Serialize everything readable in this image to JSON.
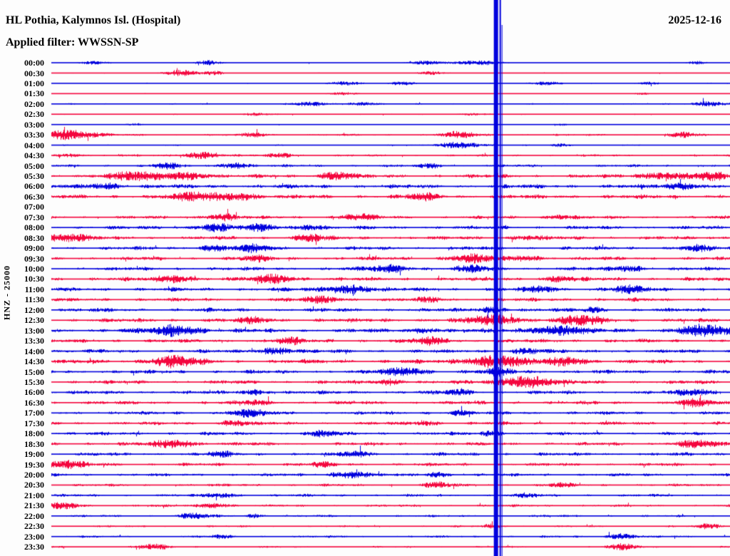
{
  "header": {
    "title": "HL Pothia, Kalymnos Isl. (Hospital)",
    "filter_label": "Applied filter: WWSSN-SP",
    "date": "2025-12-16"
  },
  "chart_data": {
    "type": "line",
    "subtype": "helicorder-seismogram",
    "title": "HL Pothia, Kalymnos Isl. (Hospital)",
    "filter_label": "Applied filter: WWSSN-SP",
    "date": "2025-12-16",
    "channel_scale_label": "HNZ - 25000",
    "minutes_per_row": 30,
    "rows_count": 48,
    "legend": "alternating trace colors per 30-minute row; amp = relative background noise half-amplitude (px), bursts = [position fraction of row, gaussian width px, extra amplitude px]; row 07:00 is a data gap",
    "colors": {
      "blue": "#0000dd",
      "red": "#f4063e",
      "label": "#000000",
      "background": "#fdfdfd"
    },
    "event_line": {
      "x_frac": 0.652,
      "color": "#0000dd",
      "full_height": true
    },
    "rows": [
      {
        "time": "00:00",
        "color": "blue",
        "amp": 0.8,
        "bursts": [
          [
            0.06,
            12,
            2.5
          ],
          [
            0.23,
            12,
            3
          ],
          [
            0.55,
            18,
            2.5
          ],
          [
            0.63,
            24,
            3
          ],
          [
            0.95,
            9,
            2
          ]
        ]
      },
      {
        "time": "00:30",
        "color": "red",
        "amp": 0.9,
        "bursts": [
          [
            0.19,
            18,
            4
          ],
          [
            0.24,
            9,
            2.5
          ],
          [
            0.56,
            12,
            2
          ]
        ]
      },
      {
        "time": "01:00",
        "color": "blue",
        "amp": 0.9,
        "bursts": [
          [
            0.43,
            15,
            2.5
          ],
          [
            0.52,
            12,
            2.5
          ],
          [
            0.73,
            15,
            2.5
          ],
          [
            0.88,
            12,
            2
          ]
        ]
      },
      {
        "time": "01:30",
        "color": "red",
        "amp": 0.55,
        "bursts": [
          [
            0.43,
            15,
            2
          ],
          [
            0.87,
            9,
            1.5
          ]
        ]
      },
      {
        "time": "02:00",
        "color": "blue",
        "amp": 1.1,
        "bursts": [
          [
            0.38,
            18,
            2.5
          ],
          [
            0.46,
            15,
            2.5
          ],
          [
            0.97,
            18,
            3.5
          ]
        ]
      },
      {
        "time": "02:30",
        "color": "red",
        "amp": 1.0,
        "bursts": [
          [
            0.3,
            12,
            1.8
          ],
          [
            0.62,
            12,
            1.8
          ]
        ]
      },
      {
        "time": "03:00",
        "color": "blue",
        "amp": 0.6,
        "bursts": [
          [
            0.12,
            9,
            1.5
          ],
          [
            0.75,
            9,
            1.5
          ]
        ]
      },
      {
        "time": "03:30",
        "color": "red",
        "amp": 1.6,
        "bursts": [
          [
            0.02,
            30,
            7
          ],
          [
            0.3,
            12,
            3
          ],
          [
            0.6,
            18,
            4
          ],
          [
            0.93,
            12,
            3.5
          ]
        ]
      },
      {
        "time": "04:00",
        "color": "blue",
        "amp": 1.1,
        "bursts": [
          [
            0.6,
            21,
            4.5
          ],
          [
            0.75,
            12,
            2
          ]
        ]
      },
      {
        "time": "04:30",
        "color": "red",
        "amp": 1.7,
        "bursts": [
          [
            0.03,
            12,
            2.5
          ],
          [
            0.22,
            18,
            4.5
          ],
          [
            0.34,
            12,
            3
          ]
        ]
      },
      {
        "time": "05:00",
        "color": "blue",
        "amp": 2.0,
        "bursts": [
          [
            0.17,
            12,
            4
          ],
          [
            0.27,
            15,
            4
          ],
          [
            0.56,
            12,
            3
          ]
        ]
      },
      {
        "time": "05:30",
        "color": "red",
        "amp": 2.8,
        "bursts": [
          [
            0.12,
            30,
            5
          ],
          [
            0.2,
            24,
            4.5
          ],
          [
            0.42,
            18,
            5
          ],
          [
            0.9,
            24,
            4.5
          ],
          [
            0.97,
            18,
            5
          ]
        ]
      },
      {
        "time": "06:00",
        "color": "blue",
        "amp": 3.2,
        "bursts": [
          [
            0.08,
            18,
            3.5
          ],
          [
            0.93,
            18,
            4
          ]
        ]
      },
      {
        "time": "06:30",
        "color": "red",
        "amp": 3.2,
        "bursts": [
          [
            0.22,
            30,
            5
          ],
          [
            0.28,
            18,
            4
          ],
          [
            0.55,
            15,
            4
          ]
        ]
      },
      {
        "time": "07:00",
        "color": "blue",
        "amp": 0,
        "bursts": [],
        "gap": true
      },
      {
        "time": "07:30",
        "color": "red",
        "amp": 2.4,
        "bursts": [
          [
            0.25,
            18,
            4
          ],
          [
            0.45,
            18,
            4
          ],
          [
            0.75,
            15,
            3
          ]
        ]
      },
      {
        "time": "08:00",
        "color": "blue",
        "amp": 2.8,
        "bursts": [
          [
            0.24,
            18,
            4.5
          ],
          [
            0.31,
            15,
            4
          ],
          [
            0.38,
            15,
            3.5
          ]
        ]
      },
      {
        "time": "08:30",
        "color": "red",
        "amp": 2.8,
        "bursts": [
          [
            0.02,
            24,
            5
          ],
          [
            0.38,
            15,
            4.5
          ],
          [
            0.7,
            15,
            3
          ]
        ]
      },
      {
        "time": "09:00",
        "color": "blue",
        "amp": 2.8,
        "bursts": [
          [
            0.24,
            15,
            4
          ],
          [
            0.3,
            15,
            4.5
          ],
          [
            0.95,
            15,
            3.5
          ]
        ]
      },
      {
        "time": "09:30",
        "color": "red",
        "amp": 2.8,
        "bursts": [
          [
            0.3,
            15,
            3
          ],
          [
            0.62,
            24,
            4.5
          ],
          [
            0.7,
            15,
            3.5
          ]
        ]
      },
      {
        "time": "10:00",
        "color": "blue",
        "amp": 2.8,
        "bursts": [
          [
            0.5,
            21,
            4.5
          ],
          [
            0.62,
            15,
            4
          ],
          [
            0.85,
            15,
            3.5
          ]
        ]
      },
      {
        "time": "10:30",
        "color": "red",
        "amp": 3.0,
        "bursts": [
          [
            0.18,
            18,
            5
          ],
          [
            0.33,
            21,
            5.5
          ],
          [
            0.75,
            15,
            3.5
          ]
        ]
      },
      {
        "time": "11:00",
        "color": "blue",
        "amp": 3.0,
        "bursts": [
          [
            0.44,
            24,
            5.5
          ],
          [
            0.72,
            15,
            3.5
          ],
          [
            0.85,
            18,
            4.5
          ]
        ]
      },
      {
        "time": "11:30",
        "color": "red",
        "amp": 2.8,
        "bursts": [
          [
            0.4,
            18,
            4.5
          ],
          [
            0.56,
            12,
            3
          ]
        ]
      },
      {
        "time": "12:00",
        "color": "blue",
        "amp": 3.0,
        "bursts": [
          [
            0.65,
            15,
            3.5
          ],
          [
            0.8,
            12,
            3
          ]
        ]
      },
      {
        "time": "12:30",
        "color": "red",
        "amp": 3.2,
        "bursts": [
          [
            0.3,
            15,
            3.5
          ],
          [
            0.655,
            24,
            6
          ],
          [
            0.78,
            24,
            5.5
          ]
        ]
      },
      {
        "time": "13:00",
        "color": "blue",
        "amp": 3.2,
        "bursts": [
          [
            0.185,
            24,
            7
          ],
          [
            0.55,
            15,
            3.5
          ],
          [
            0.745,
            27,
            6.5
          ],
          [
            0.96,
            27,
            7
          ]
        ]
      },
      {
        "time": "13:30",
        "color": "red",
        "amp": 2.9,
        "bursts": [
          [
            0.35,
            15,
            3.5
          ],
          [
            0.56,
            18,
            4.5
          ]
        ]
      },
      {
        "time": "14:00",
        "color": "blue",
        "amp": 2.9,
        "bursts": [
          [
            0.33,
            18,
            4.5
          ],
          [
            0.7,
            15,
            3.5
          ]
        ]
      },
      {
        "time": "14:30",
        "color": "red",
        "amp": 3.2,
        "bursts": [
          [
            0.18,
            24,
            7
          ],
          [
            0.655,
            30,
            8
          ],
          [
            0.76,
            21,
            5
          ]
        ]
      },
      {
        "time": "15:00",
        "color": "blue",
        "amp": 2.9,
        "bursts": [
          [
            0.52,
            21,
            5
          ],
          [
            0.66,
            15,
            4
          ]
        ]
      },
      {
        "time": "15:30",
        "color": "red",
        "amp": 2.9,
        "bursts": [
          [
            0.5,
            15,
            3.5
          ],
          [
            0.7,
            27,
            8
          ]
        ]
      },
      {
        "time": "16:00",
        "color": "blue",
        "amp": 2.8,
        "bursts": [
          [
            0.3,
            15,
            3
          ],
          [
            0.6,
            15,
            3
          ],
          [
            0.95,
            18,
            4
          ]
        ]
      },
      {
        "time": "16:30",
        "color": "red",
        "amp": 2.7,
        "bursts": [
          [
            0.3,
            15,
            3
          ],
          [
            0.95,
            18,
            4.5
          ]
        ]
      },
      {
        "time": "17:00",
        "color": "blue",
        "amp": 2.7,
        "bursts": [
          [
            0.29,
            18,
            4.5
          ],
          [
            0.6,
            12,
            3
          ]
        ]
      },
      {
        "time": "17:30",
        "color": "red",
        "amp": 2.6,
        "bursts": [
          [
            0.27,
            15,
            3.5
          ],
          [
            0.55,
            12,
            3
          ]
        ]
      },
      {
        "time": "18:00",
        "color": "blue",
        "amp": 2.6,
        "bursts": [
          [
            0.4,
            15,
            3.5
          ],
          [
            0.65,
            12,
            3
          ]
        ]
      },
      {
        "time": "18:30",
        "color": "red",
        "amp": 2.6,
        "bursts": [
          [
            0.18,
            21,
            5.5
          ],
          [
            0.95,
            21,
            4.5
          ]
        ]
      },
      {
        "time": "19:00",
        "color": "blue",
        "amp": 2.6,
        "bursts": [
          [
            0.25,
            12,
            3
          ],
          [
            0.45,
            15,
            3.5
          ]
        ]
      },
      {
        "time": "19:30",
        "color": "red",
        "amp": 2.5,
        "bursts": [
          [
            0.02,
            21,
            4.5
          ],
          [
            0.4,
            12,
            3
          ]
        ]
      },
      {
        "time": "20:00",
        "color": "blue",
        "amp": 2.3,
        "bursts": [
          [
            0.44,
            18,
            5
          ],
          [
            0.57,
            12,
            3.5
          ]
        ]
      },
      {
        "time": "20:30",
        "color": "red",
        "amp": 2.1,
        "bursts": [
          [
            0.57,
            15,
            3.5
          ],
          [
            0.75,
            12,
            2.5
          ]
        ]
      },
      {
        "time": "21:00",
        "color": "blue",
        "amp": 2.1,
        "bursts": [
          [
            0.25,
            15,
            3
          ],
          [
            0.7,
            12,
            2.5
          ]
        ]
      },
      {
        "time": "21:30",
        "color": "red",
        "amp": 1.9,
        "bursts": [
          [
            0.02,
            15,
            4
          ],
          [
            0.24,
            15,
            3.5
          ]
        ]
      },
      {
        "time": "22:00",
        "color": "blue",
        "amp": 1.7,
        "bursts": [
          [
            0.21,
            15,
            3.5
          ],
          [
            0.3,
            9,
            2.5
          ]
        ]
      },
      {
        "time": "22:30",
        "color": "red",
        "amp": 1.5,
        "bursts": [
          [
            0.65,
            12,
            2.5
          ],
          [
            0.97,
            12,
            3
          ]
        ]
      },
      {
        "time": "23:00",
        "color": "blue",
        "amp": 1.7,
        "bursts": [
          [
            0.25,
            9,
            2.5
          ],
          [
            0.84,
            15,
            4
          ]
        ]
      },
      {
        "time": "23:30",
        "color": "red",
        "amp": 1.4,
        "bursts": [
          [
            0.15,
            15,
            3.5
          ],
          [
            0.84,
            15,
            4
          ]
        ]
      }
    ]
  }
}
